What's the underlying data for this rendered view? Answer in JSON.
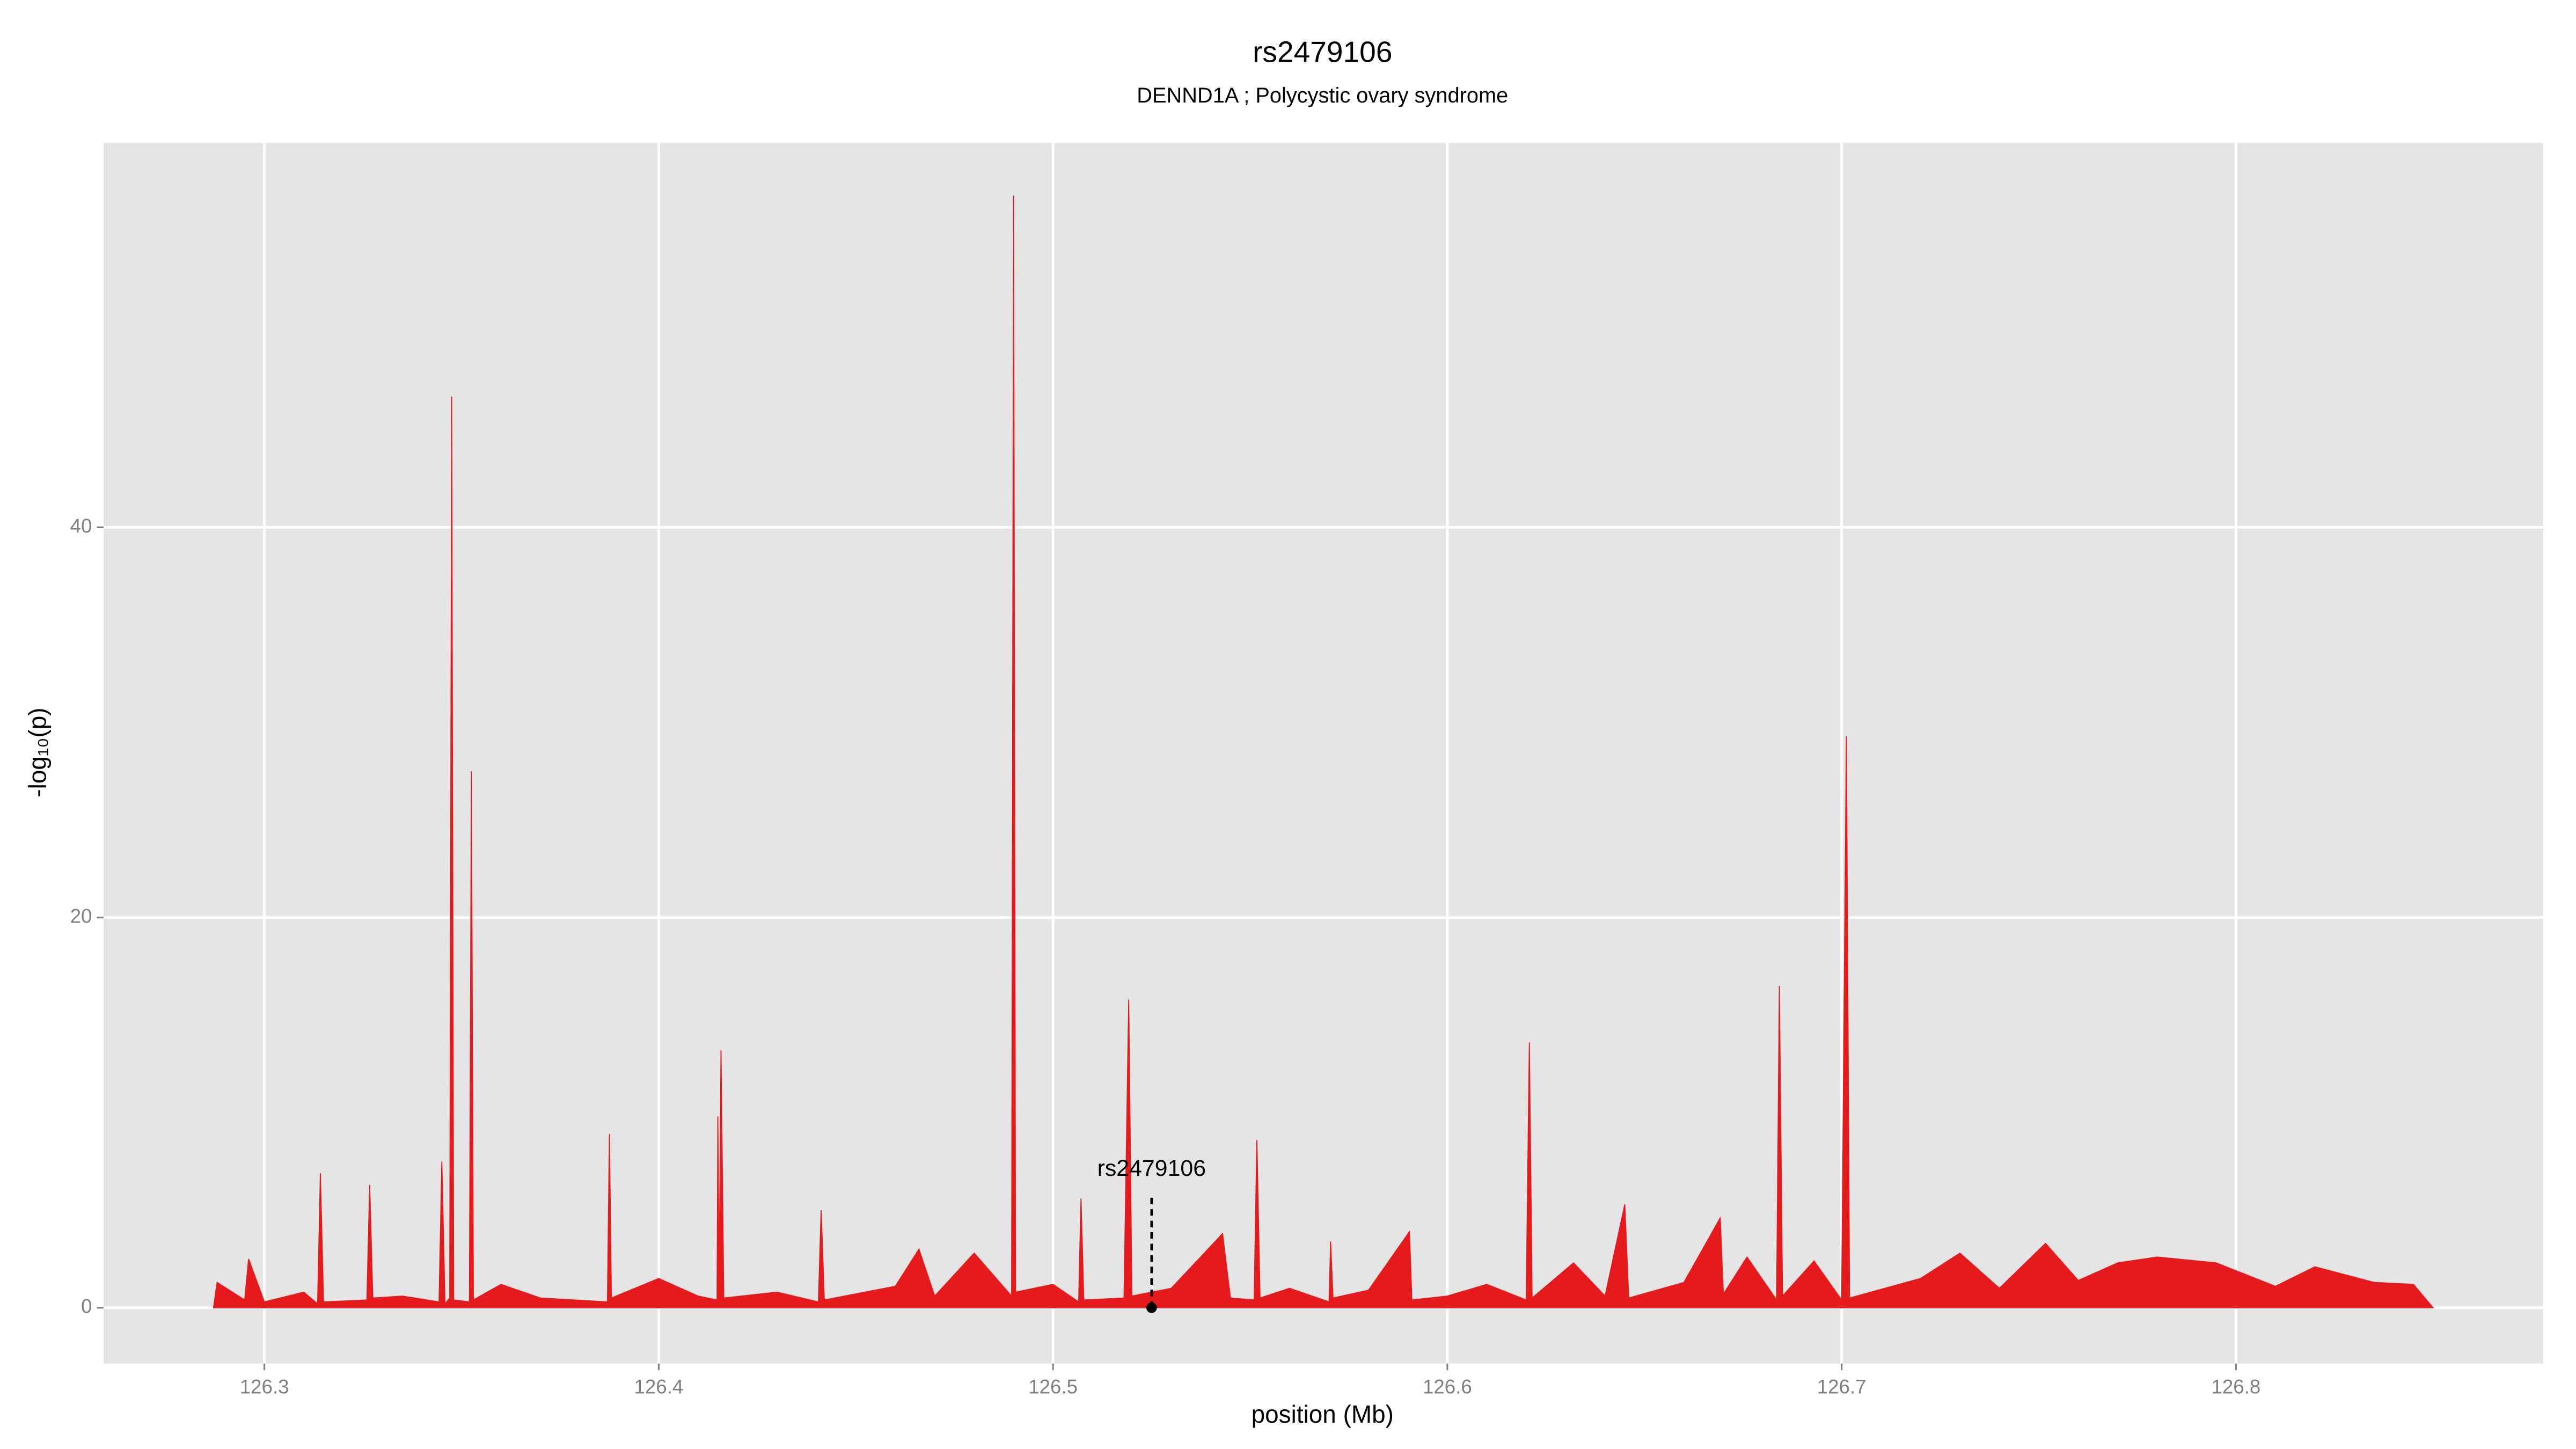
{
  "chart_data": {
    "type": "area",
    "title": "rs2479106",
    "subtitle": "DENND1A ; Polycystic ovary syndrome",
    "x_label": "position (Mb)",
    "y_label": "-log₁₀(p)",
    "color": "#e41a1c",
    "grid": true,
    "xlim": [
      126.2592,
      126.8779
    ],
    "ylim": [
      -2.86,
      59.7
    ],
    "xticks": [
      126.3,
      126.4,
      126.5,
      126.6,
      126.7,
      126.8
    ],
    "yticks": [
      0,
      20,
      40
    ],
    "x": [
      126.2871,
      126.288,
      126.295,
      126.296,
      126.3,
      126.31,
      126.3135,
      126.3142,
      126.315,
      126.326,
      126.3267,
      126.3275,
      126.335,
      126.3443,
      126.345,
      126.3458,
      126.347,
      126.3475,
      126.348,
      126.352,
      126.3525,
      126.353,
      126.36,
      126.37,
      126.387,
      126.3875,
      126.388,
      126.4,
      126.41,
      126.4148,
      126.415,
      126.4153,
      126.4158,
      126.4165,
      126.43,
      126.4405,
      126.4412,
      126.442,
      126.46,
      126.466,
      126.47,
      126.48,
      126.4895,
      126.49,
      126.4905,
      126.5,
      126.5065,
      126.5071,
      126.5078,
      126.518,
      126.5192,
      126.52,
      126.53,
      126.543,
      126.545,
      126.551,
      126.5517,
      126.5525,
      126.56,
      126.57,
      126.5704,
      126.571,
      126.58,
      126.5904,
      126.591,
      126.6,
      126.61,
      126.62,
      126.6208,
      126.6215,
      126.632,
      126.64,
      126.645,
      126.646,
      126.66,
      126.6692,
      126.67,
      126.676,
      126.6835,
      126.6842,
      126.685,
      126.693,
      126.7,
      126.7012,
      126.702,
      126.72,
      126.73,
      126.74,
      126.7517,
      126.76,
      126.77,
      126.78,
      126.795,
      126.81,
      126.82,
      126.835,
      126.845,
      126.85
    ],
    "values": [
      0,
      1.3,
      0.4,
      2.5,
      0.3,
      0.8,
      0.2,
      6.9,
      0.3,
      0.4,
      6.3,
      0.5,
      0.6,
      0.3,
      7.5,
      0.2,
      0.5,
      46.7,
      0.4,
      0.3,
      27.5,
      0.4,
      1.2,
      0.5,
      0.3,
      8.9,
      0.5,
      1.5,
      0.6,
      0.4,
      9.8,
      0.8,
      13.2,
      0.5,
      0.8,
      0.3,
      5.0,
      0.4,
      1.1,
      3.0,
      0.6,
      2.8,
      0.6,
      57.0,
      0.8,
      1.2,
      0.3,
      5.6,
      0.4,
      0.5,
      15.8,
      0.6,
      1.0,
      3.8,
      0.5,
      0.4,
      8.6,
      0.5,
      1.0,
      0.3,
      3.4,
      0.5,
      0.9,
      3.9,
      0.4,
      0.6,
      1.2,
      0.4,
      13.6,
      0.5,
      2.3,
      0.6,
      5.3,
      0.5,
      1.3,
      4.6,
      0.7,
      2.6,
      0.4,
      16.5,
      0.6,
      2.4,
      0.4,
      29.3,
      0.5,
      1.5,
      2.8,
      1.0,
      3.3,
      1.4,
      2.3,
      2.6,
      2.3,
      1.1,
      2.1,
      1.3,
      1.2,
      0
    ],
    "annotation": {
      "label": "rs2479106",
      "x": 126.525,
      "y": 0
    }
  }
}
